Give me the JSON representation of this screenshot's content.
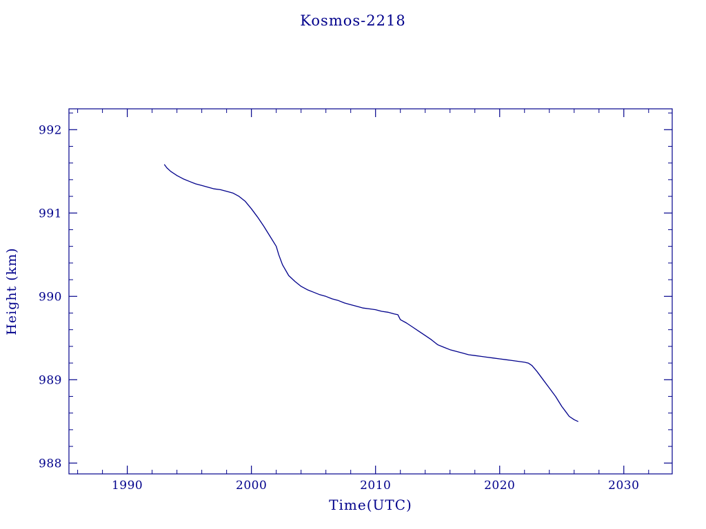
{
  "page": {
    "background": "#ffffff",
    "accent_color": "#00008b"
  },
  "chart_data": {
    "type": "line",
    "title": "Kosmos-2218",
    "xlabel": "Time(UTC)",
    "ylabel": "Height (km)",
    "xlim": [
      1985.3,
      2033.9
    ],
    "ylim": [
      987.87,
      992.25
    ],
    "x_ticks": [
      1990,
      2000,
      2010,
      2020,
      2030
    ],
    "x_minor_step": 2,
    "y_ticks": [
      988,
      989,
      990,
      991,
      992
    ],
    "y_minor_step": 0.2,
    "grid": false,
    "legend": "none",
    "line_color": "#00008b",
    "series": [
      {
        "name": "Kosmos-2218 height",
        "points": [
          [
            1993.0,
            991.58
          ],
          [
            1993.2,
            991.54
          ],
          [
            1993.5,
            991.5
          ],
          [
            1994.0,
            991.45
          ],
          [
            1994.5,
            991.41
          ],
          [
            1995.0,
            991.38
          ],
          [
            1995.5,
            991.35
          ],
          [
            1996.0,
            991.33
          ],
          [
            1996.5,
            991.31
          ],
          [
            1997.0,
            991.29
          ],
          [
            1997.5,
            991.28
          ],
          [
            1998.0,
            991.26
          ],
          [
            1998.5,
            991.24
          ],
          [
            1999.0,
            991.2
          ],
          [
            1999.5,
            991.14
          ],
          [
            2000.0,
            991.05
          ],
          [
            2000.5,
            990.95
          ],
          [
            2001.0,
            990.84
          ],
          [
            2001.5,
            990.72
          ],
          [
            2002.0,
            990.6
          ],
          [
            2002.2,
            990.5
          ],
          [
            2002.5,
            990.38
          ],
          [
            2003.0,
            990.25
          ],
          [
            2003.5,
            990.18
          ],
          [
            2004.0,
            990.12
          ],
          [
            2004.5,
            990.08
          ],
          [
            2005.0,
            990.05
          ],
          [
            2005.5,
            990.02
          ],
          [
            2006.0,
            990.0
          ],
          [
            2006.5,
            989.97
          ],
          [
            2007.0,
            989.95
          ],
          [
            2007.5,
            989.92
          ],
          [
            2008.0,
            989.9
          ],
          [
            2008.5,
            989.88
          ],
          [
            2009.0,
            989.86
          ],
          [
            2009.5,
            989.85
          ],
          [
            2010.0,
            989.84
          ],
          [
            2010.5,
            989.82
          ],
          [
            2011.0,
            989.81
          ],
          [
            2011.5,
            989.79
          ],
          [
            2011.8,
            989.78
          ],
          [
            2012.0,
            989.72
          ],
          [
            2012.5,
            989.68
          ],
          [
            2013.0,
            989.63
          ],
          [
            2013.5,
            989.58
          ],
          [
            2014.0,
            989.53
          ],
          [
            2014.5,
            989.48
          ],
          [
            2015.0,
            989.42
          ],
          [
            2015.5,
            989.39
          ],
          [
            2016.0,
            989.36
          ],
          [
            2016.5,
            989.34
          ],
          [
            2017.0,
            989.32
          ],
          [
            2017.5,
            989.3
          ],
          [
            2018.0,
            989.29
          ],
          [
            2018.5,
            989.28
          ],
          [
            2019.0,
            989.27
          ],
          [
            2019.5,
            989.26
          ],
          [
            2020.0,
            989.25
          ],
          [
            2020.5,
            989.24
          ],
          [
            2021.0,
            989.23
          ],
          [
            2021.5,
            989.22
          ],
          [
            2022.0,
            989.21
          ],
          [
            2022.3,
            989.2
          ],
          [
            2022.6,
            989.17
          ],
          [
            2023.0,
            989.1
          ],
          [
            2023.5,
            989.0
          ],
          [
            2024.0,
            988.9
          ],
          [
            2024.5,
            988.8
          ],
          [
            2025.0,
            988.68
          ],
          [
            2025.3,
            988.62
          ],
          [
            2025.6,
            988.56
          ],
          [
            2026.0,
            988.52
          ],
          [
            2026.3,
            988.5
          ]
        ]
      }
    ]
  }
}
